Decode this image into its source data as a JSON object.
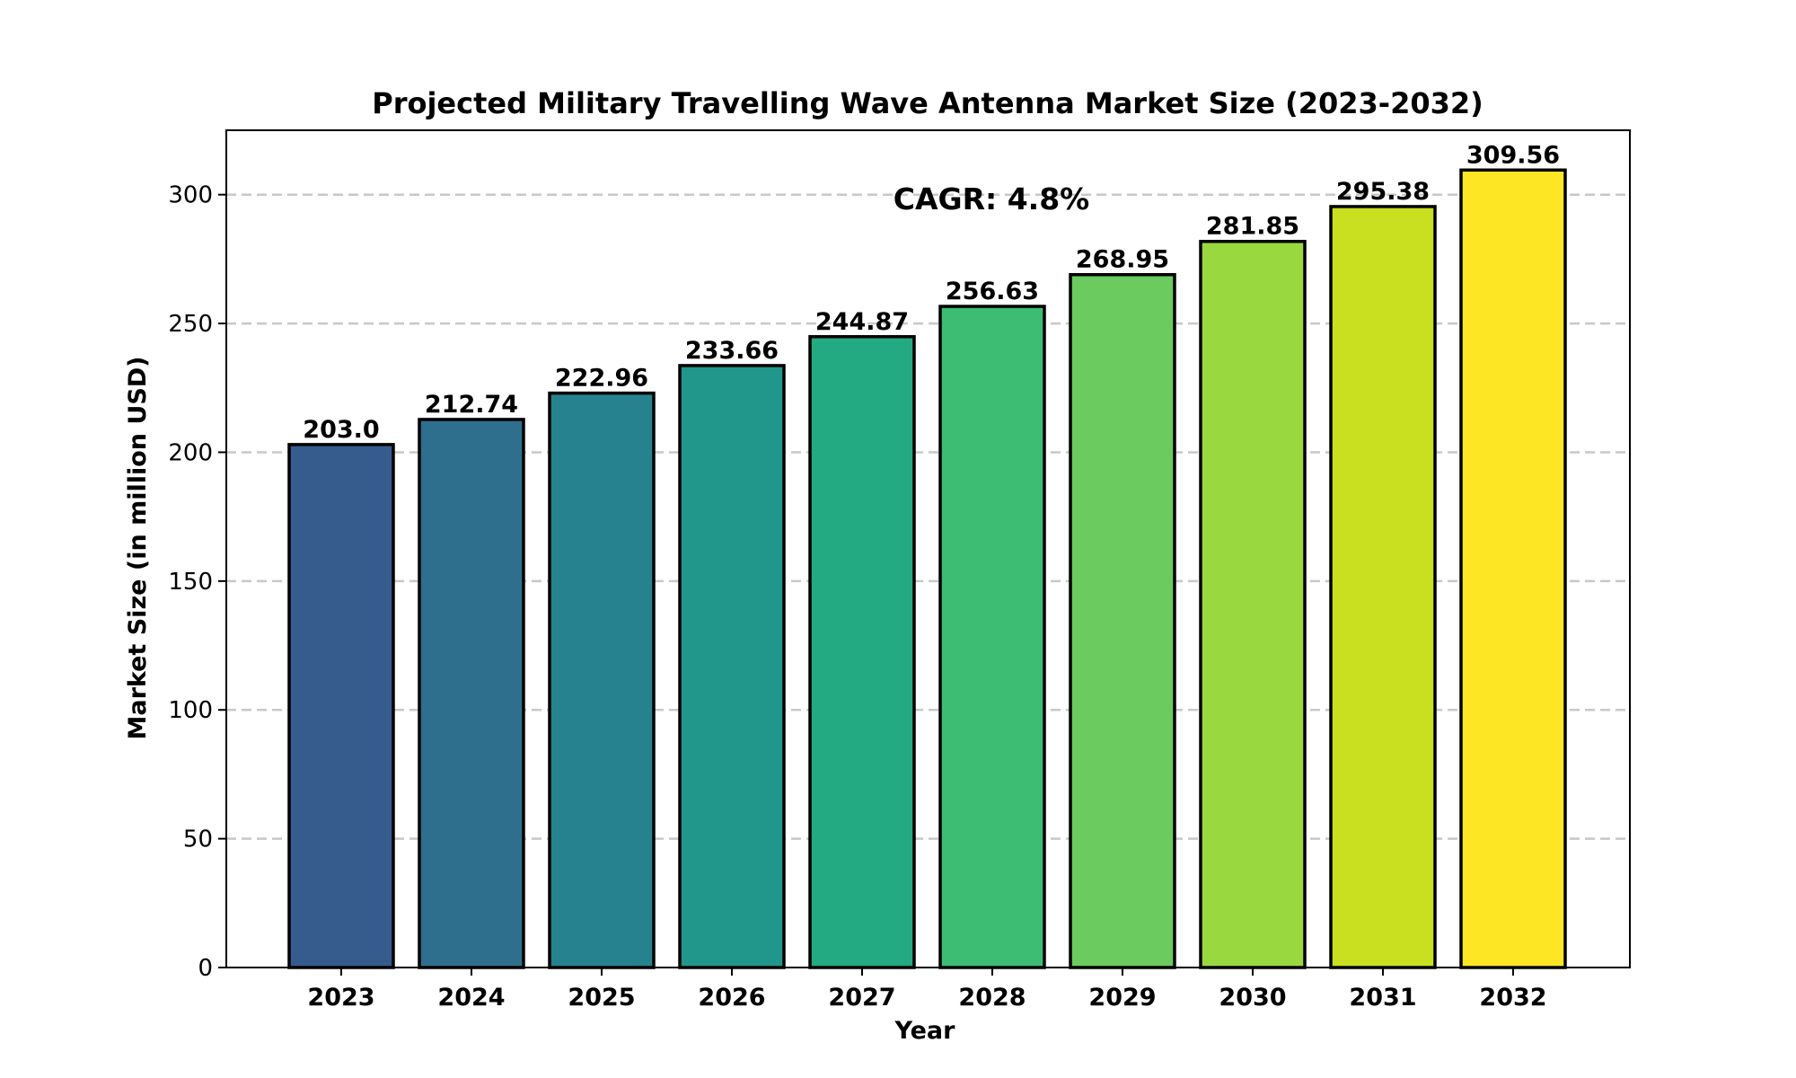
{
  "chart_data": {
    "type": "bar",
    "title": "Projected Military Travelling Wave Antenna Market Size (2023-2032)",
    "xlabel": "Year",
    "ylabel": "Market Size (in million USD)",
    "categories": [
      "2023",
      "2024",
      "2025",
      "2026",
      "2027",
      "2028",
      "2029",
      "2030",
      "2031",
      "2032"
    ],
    "values": [
      203.0,
      212.74,
      222.96,
      233.66,
      244.87,
      256.63,
      268.95,
      281.85,
      295.38,
      309.56
    ],
    "value_labels": [
      "203.0",
      "212.74",
      "222.96",
      "233.66",
      "244.87",
      "256.63",
      "268.95",
      "281.85",
      "295.38",
      "309.56"
    ],
    "colors": [
      "#365c8d",
      "#2e6f8e",
      "#26828e",
      "#21968b",
      "#23aa82",
      "#3dbc74",
      "#6bcb5e",
      "#99d93f",
      "#c8e020",
      "#fde725"
    ],
    "ylim": [
      0,
      325
    ],
    "yticks": [
      0,
      50,
      100,
      150,
      200,
      250,
      300
    ],
    "grid": "y-dashed",
    "annotation": "CAGR: 4.8%"
  }
}
